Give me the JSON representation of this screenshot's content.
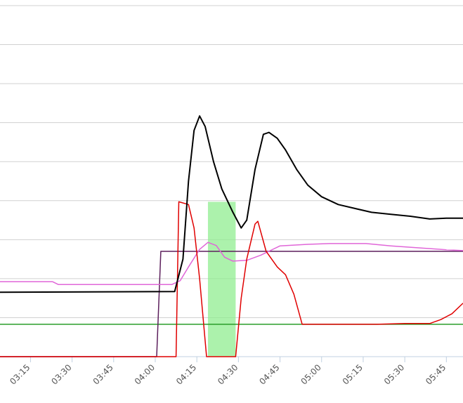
{
  "chart_data": {
    "type": "line",
    "xlim": [
      184,
      351
    ],
    "ylim": [
      0,
      9
    ],
    "yticks": [
      0,
      1,
      2,
      3,
      4,
      5,
      6,
      7,
      8,
      9
    ],
    "grid": true,
    "xticks": [
      {
        "value": 195,
        "label": "03:15"
      },
      {
        "value": 210,
        "label": "03:30"
      },
      {
        "value": 225,
        "label": "03:45"
      },
      {
        "value": 240,
        "label": "04:00"
      },
      {
        "value": 255,
        "label": "04:15"
      },
      {
        "value": 270,
        "label": "04:30"
      },
      {
        "value": 285,
        "label": "04:45"
      },
      {
        "value": 300,
        "label": "05:00"
      },
      {
        "value": 315,
        "label": "05:15"
      },
      {
        "value": 330,
        "label": "05:30"
      },
      {
        "value": 345,
        "label": "05:45"
      }
    ],
    "highlight": {
      "x": [
        259,
        269
      ],
      "y": [
        0,
        3.97
      ],
      "color": "#90ee90"
    },
    "series": [
      {
        "color": "#2a9d2a",
        "x": [
          184,
          351
        ],
        "values": [
          0.83,
          0.83
        ]
      },
      {
        "color": "#5c1f5c",
        "x": [
          184,
          240.5,
          242,
          351
        ],
        "values": [
          0,
          0,
          2.7,
          2.7
        ]
      },
      {
        "color": "#e066d8",
        "x": [
          184,
          203,
          205,
          246,
          249,
          252,
          256,
          259,
          262,
          265,
          268,
          273,
          278,
          285,
          295,
          303,
          316,
          325,
          335,
          345,
          351
        ],
        "values": [
          1.92,
          1.92,
          1.85,
          1.85,
          1.95,
          2.3,
          2.75,
          2.93,
          2.85,
          2.55,
          2.45,
          2.47,
          2.6,
          2.84,
          2.88,
          2.9,
          2.9,
          2.84,
          2.79,
          2.74,
          2.72
        ]
      },
      {
        "color": "#e00000",
        "x": [
          184,
          247.5,
          248.5,
          252,
          254,
          256,
          258.5,
          269,
          271,
          273,
          276,
          277,
          280,
          284,
          287,
          290,
          293,
          320,
          330,
          339,
          343,
          347,
          351
        ],
        "values": [
          0,
          0,
          3.97,
          3.9,
          3.3,
          2.0,
          0,
          0,
          1.5,
          2.5,
          3.4,
          3.47,
          2.7,
          2.3,
          2.1,
          1.6,
          0.83,
          0.83,
          0.85,
          0.85,
          0.95,
          1.1,
          1.37
        ]
      },
      {
        "color": "#000000",
        "x": [
          184,
          247,
          250,
          252,
          254,
          256,
          258,
          261,
          264,
          268,
          271,
          273,
          276,
          279,
          281,
          284,
          287,
          291,
          295,
          300,
          306,
          312,
          318,
          325,
          332,
          339,
          345,
          351
        ],
        "values": [
          1.65,
          1.67,
          2.5,
          4.5,
          5.8,
          6.17,
          5.9,
          5.0,
          4.3,
          3.7,
          3.3,
          3.5,
          4.8,
          5.7,
          5.75,
          5.6,
          5.3,
          4.8,
          4.4,
          4.1,
          3.9,
          3.8,
          3.7,
          3.65,
          3.6,
          3.53,
          3.55,
          3.55
        ]
      }
    ]
  }
}
